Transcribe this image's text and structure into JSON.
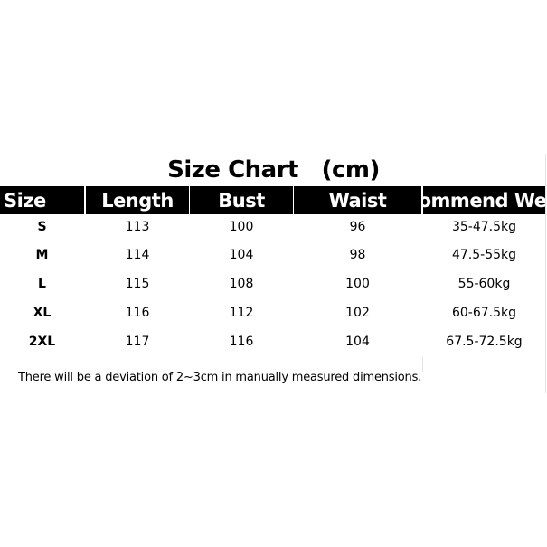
{
  "title": "Size Chart   (cm)",
  "headers": [
    "Size",
    "Length",
    "Bust",
    "Waist",
    "Recommend Weight"
  ],
  "rows": [
    [
      "S",
      "113",
      "100",
      "96",
      "35-47.5kg"
    ],
    [
      "M",
      "114",
      "104",
      "98",
      "47.5-55kg"
    ],
    [
      "L",
      "115",
      "108",
      "100",
      "55-60kg"
    ],
    [
      "XL",
      "116",
      "112",
      "102",
      "60-67.5kg"
    ],
    [
      "2XL",
      "117",
      "116",
      "104",
      "67.5-72.5kg"
    ]
  ],
  "note": "There will be a deviation of 2~3cm in manually measured dimensions."
}
